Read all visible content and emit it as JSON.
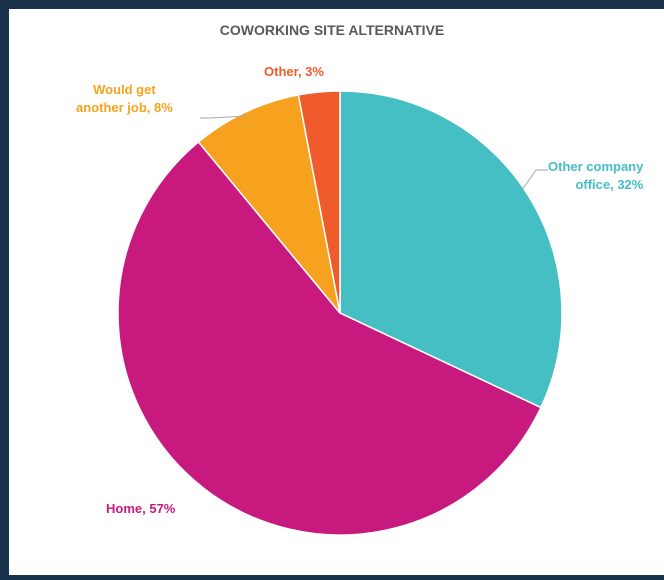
{
  "chart_data": {
    "type": "pie",
    "title": "COWORKING SITE ALTERNATIVE",
    "start_angle_deg": 0,
    "direction": "clockwise",
    "slices": [
      {
        "name": "Other company office",
        "value": 32,
        "color": "#45bec4",
        "label_lines": [
          "Other company",
          "office, 32%"
        ]
      },
      {
        "name": "Home",
        "value": 57,
        "color": "#c8197e",
        "label_lines": [
          "Home, 57%"
        ]
      },
      {
        "name": "Would get another job",
        "value": 8,
        "color": "#f6a21e",
        "label_lines": [
          "Would get",
          "another job, 8%"
        ]
      },
      {
        "name": "Other",
        "value": 3,
        "color": "#ef5b2a",
        "label_lines": [
          "Other, 3%"
        ]
      }
    ]
  }
}
